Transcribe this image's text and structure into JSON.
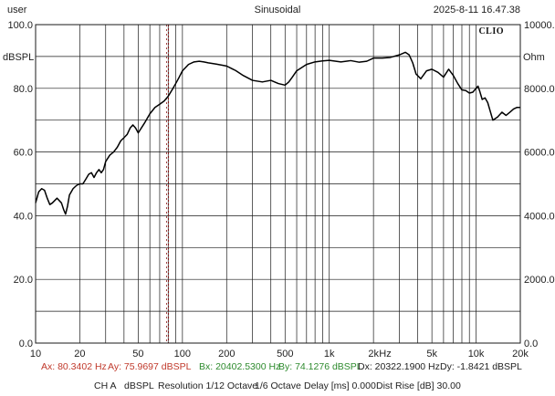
{
  "header": {
    "user": "user",
    "signal": "Sinusoidal",
    "datetime": "2025-8-11 16.47.38"
  },
  "logo": "CLIO",
  "colors": {
    "curve": "#000000",
    "grid": "#1a1a1a",
    "cursor": "#8b1a1a",
    "ax": "#c0392b",
    "bx": "#2e8b2e",
    "dx": "#222222"
  },
  "cursors": {
    "ax_label": "Ax: 80.3402 Hz",
    "ay_label": "Ay: 75.9697 dBSPL",
    "bx_label": "Bx: 20402.5300 Hz",
    "by_label": "By: 74.1276 dBSPL",
    "dx_label": "Dx: 20322.1900 Hz",
    "dy_label": "Dy: -1.8421 dBSPL"
  },
  "settings": {
    "channel": "CH A",
    "units": "dBSPL",
    "resolution": "Resolution 1/12 Octave",
    "smoothing": "1/6 Octave",
    "delay": "Delay [ms] 0.000",
    "dist_rise": "Dist Rise [dB] 30.00"
  },
  "chart_data": {
    "type": "line",
    "x_scale": "log",
    "xlim": [
      10,
      20000
    ],
    "ylim": [
      0,
      100
    ],
    "y2lim": [
      0,
      10000
    ],
    "ylabel": "dBSPL",
    "y2label": "Ohm",
    "xlabel": "Hz",
    "grid": true,
    "x_ticks": [
      {
        "value": 10,
        "label": "10"
      },
      {
        "value": 20,
        "label": "20"
      },
      {
        "value": 50,
        "label": "50"
      },
      {
        "value": 100,
        "label": "100"
      },
      {
        "value": 200,
        "label": "200"
      },
      {
        "value": 500,
        "label": "500"
      },
      {
        "value": 1000,
        "label": "1k"
      },
      {
        "value": 2000,
        "label": "2k"
      },
      {
        "value": 5000,
        "label": "5k"
      },
      {
        "value": 10000,
        "label": "10k"
      },
      {
        "value": 20000,
        "label": "20k"
      }
    ],
    "y_ticks": [
      {
        "value": 0,
        "label": "0.0"
      },
      {
        "value": 20,
        "label": "20.0"
      },
      {
        "value": 40,
        "label": "40.0"
      },
      {
        "value": 60,
        "label": "60.0"
      },
      {
        "value": 80,
        "label": "80.0"
      },
      {
        "value": 100,
        "label": "100.0"
      }
    ],
    "y2_ticks": [
      {
        "value": 0,
        "label": "0.0"
      },
      {
        "value": 2000,
        "label": "2000.0"
      },
      {
        "value": 4000,
        "label": "4000.0"
      },
      {
        "value": 6000,
        "label": "6000.0"
      },
      {
        "value": 8000,
        "label": "8000.0"
      },
      {
        "value": 10000,
        "label": "10000.0"
      }
    ],
    "cursor_x": 80.34,
    "series": [
      {
        "x": [
          10,
          10.5,
          11,
          11.5,
          12,
          12.5,
          13,
          14,
          15,
          15.5,
          16,
          16.5,
          17,
          18,
          19,
          20,
          21,
          22,
          23,
          24,
          25,
          26,
          27,
          28,
          29,
          30,
          32,
          34,
          36,
          38,
          40,
          42,
          44,
          46,
          48,
          50,
          55,
          60,
          65,
          70,
          75,
          80,
          85,
          90,
          95,
          100,
          110,
          120,
          130,
          140,
          150,
          170,
          200,
          230,
          260,
          300,
          350,
          400,
          450,
          500,
          530,
          560,
          600,
          700,
          800,
          900,
          1000,
          1200,
          1400,
          1600,
          1800,
          2000,
          2300,
          2600,
          3000,
          3300,
          3500,
          3700,
          3900,
          4200,
          4600,
          5000,
          5500,
          6000,
          6500,
          7000,
          7500,
          8000,
          8500,
          9000,
          9500,
          10000,
          10300,
          10600,
          11000,
          11500,
          12000,
          13000,
          14000,
          15000,
          16000,
          17000,
          18000,
          19000,
          20000
        ],
        "y": [
          44,
          47.5,
          48.5,
          48,
          45.5,
          43.5,
          44,
          45.5,
          44,
          42,
          40.5,
          43,
          46.5,
          48.5,
          49.5,
          50,
          50,
          51.5,
          53,
          53.5,
          52,
          53.5,
          54.5,
          53.5,
          54.5,
          57,
          59,
          60,
          61.5,
          63.5,
          64.5,
          65.5,
          67.5,
          68.5,
          67.5,
          66,
          69,
          72,
          74,
          75,
          76,
          77.5,
          79.5,
          81.5,
          83.5,
          85.5,
          87.5,
          88.3,
          88.5,
          88.3,
          88,
          87.6,
          87,
          85.6,
          84,
          82.5,
          82,
          82.5,
          81.5,
          81,
          82,
          83.5,
          85.5,
          87.5,
          88.3,
          88.6,
          88.8,
          88.3,
          88.7,
          88.2,
          88.5,
          89.5,
          89.5,
          89.7,
          90.5,
          91.3,
          90.5,
          88,
          84.5,
          83,
          85.5,
          86,
          85,
          83.5,
          86,
          84,
          81.5,
          79.5,
          79.3,
          78.5,
          78.8,
          80,
          80.7,
          79,
          76.5,
          77,
          75.5,
          70,
          71,
          72.5,
          71.5,
          72.5,
          73.5,
          74,
          74
        ]
      }
    ]
  }
}
